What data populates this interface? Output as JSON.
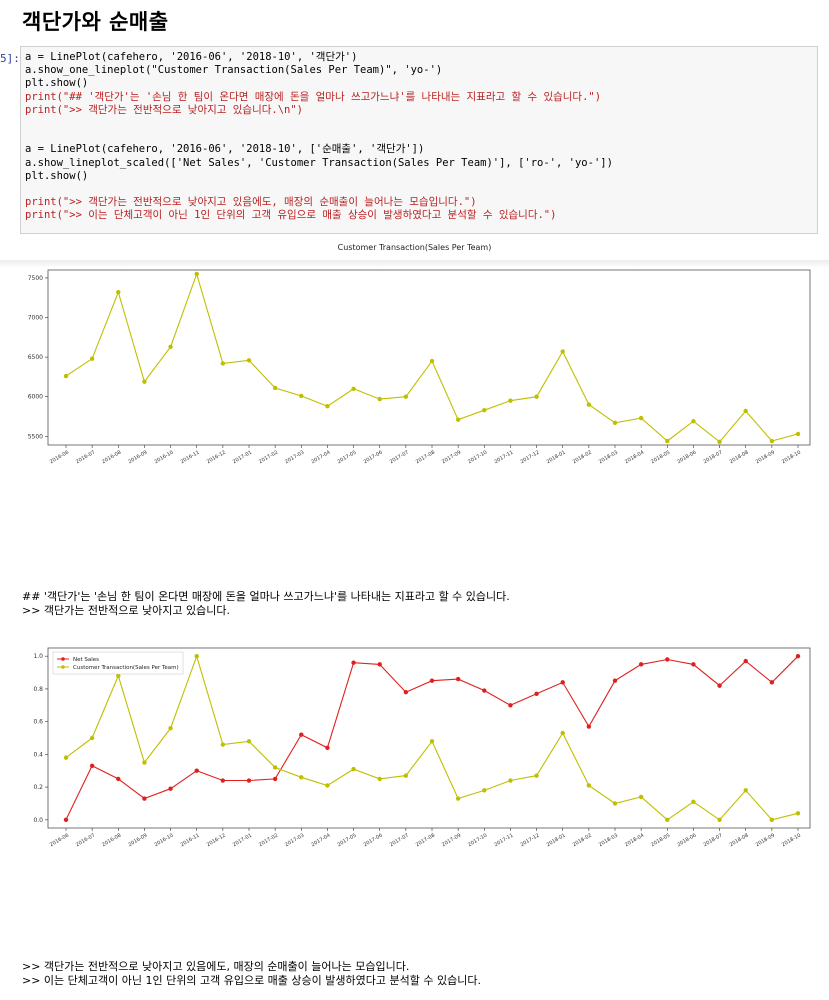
{
  "heading": "객단가와 순매출",
  "prompt": "5]:",
  "code_lines": [
    {
      "text": "a = LinePlot(cafehero, '2016-06', '2018-10', '객단가')",
      "style": "plain"
    },
    {
      "text": "a.show_one_lineplot(\"Customer Transaction(Sales Per Team)\", 'yo-')",
      "style": "plain"
    },
    {
      "text": "plt.show()",
      "style": "plain"
    },
    {
      "text": "print(\"## '객단가'는 '손님 한 팀이 온다면 매장에 돈을 얼마나 쓰고가느냐'를 나타내는 지표라고 할 수 있습니다.\")",
      "style": "red"
    },
    {
      "text": "print(\">> 객단가는 전반적으로 낮아지고 있습니다.\\n\")",
      "style": "red"
    },
    {
      "text": "",
      "style": "plain"
    },
    {
      "text": "",
      "style": "plain"
    },
    {
      "text": "a = LinePlot(cafehero, '2016-06', '2018-10', ['순매출', '객단가'])",
      "style": "plain"
    },
    {
      "text": "a.show_lineplot_scaled(['Net Sales', 'Customer Transaction(Sales Per Team)'], ['ro-', 'yo-'])",
      "style": "plain"
    },
    {
      "text": "plt.show()",
      "style": "plain"
    },
    {
      "text": "",
      "style": "plain"
    },
    {
      "text": "print(\">> 객단가는 전반적으로 낮아지고 있음에도, 매장의 순매출이 늘어나는 모습입니다.\")",
      "style": "red"
    },
    {
      "text": "print(\">> 이는 단체고객이 아닌 1인 단위의 고객 유입으로 매출 상승이 발생하였다고 분석할 수 있습니다.\")",
      "style": "red"
    }
  ],
  "output1": {
    "line1": "## '객단가'는 '손님 한 팀이 온다면 매장에 돈을 얼마나 쓰고가느냐'를 나타내는 지표라고 할 수 있습니다.",
    "line2": ">> 객단가는 전반적으로 낮아지고 있습니다."
  },
  "output2": {
    "line1": ">> 객단가는 전반적으로 낮아지고 있음에도, 매장의 순매출이 늘어나는 모습입니다.",
    "line2": ">> 이는 단체고객이 아닌 1인 단위의 고객 유입으로 매출 상승이 발생하였다고 분석할 수 있습니다."
  },
  "chart_data": [
    {
      "type": "line",
      "title": "Customer Transaction(Sales Per Team)",
      "xlabel": "",
      "ylabel": "",
      "categories": [
        "2016-06",
        "2016-07",
        "2016-08",
        "2016-09",
        "2016-10",
        "2016-11",
        "2016-12",
        "2017-01",
        "2017-02",
        "2017-03",
        "2017-04",
        "2017-05",
        "2017-06",
        "2017-07",
        "2017-08",
        "2017-09",
        "2017-10",
        "2017-11",
        "2017-12",
        "2018-01",
        "2018-02",
        "2018-03",
        "2018-04",
        "2018-05",
        "2018-06",
        "2018-07",
        "2018-08",
        "2018-09",
        "2018-10"
      ],
      "series": [
        {
          "values": [
            6260,
            6480,
            7320,
            6190,
            6630,
            7550,
            6420,
            6460,
            6110,
            6010,
            5880,
            6100,
            5970,
            6000,
            6450,
            5710,
            5830,
            5950,
            6000,
            6570,
            5900,
            5670,
            5730,
            5440,
            5690,
            5430,
            5820,
            5440,
            5530
          ],
          "color": "#bfbf00"
        }
      ],
      "yticks": [
        5500,
        6000,
        6500,
        7000,
        7500
      ],
      "ylim": [
        5390,
        7600
      ],
      "grid": false,
      "legend": "none"
    },
    {
      "type": "line",
      "title": "",
      "xlabel": "",
      "ylabel": "",
      "categories": [
        "2016-06",
        "2016-07",
        "2016-08",
        "2016-09",
        "2016-10",
        "2016-11",
        "2016-12",
        "2017-01",
        "2017-02",
        "2017-03",
        "2017-04",
        "2017-05",
        "2017-06",
        "2017-07",
        "2017-08",
        "2017-09",
        "2017-10",
        "2017-11",
        "2017-12",
        "2018-01",
        "2018-02",
        "2018-03",
        "2018-04",
        "2018-05",
        "2018-06",
        "2018-07",
        "2018-08",
        "2018-09",
        "2018-10"
      ],
      "series": [
        {
          "name": "Net Sales",
          "color": "#e02020",
          "values": [
            0.0,
            0.33,
            0.25,
            0.13,
            0.19,
            0.3,
            0.24,
            0.24,
            0.25,
            0.52,
            0.44,
            0.96,
            0.95,
            0.78,
            0.85,
            0.86,
            0.79,
            0.7,
            0.77,
            0.84,
            0.57,
            0.85,
            0.95,
            0.98,
            0.95,
            0.82,
            0.97,
            0.84,
            1.0
          ]
        },
        {
          "name": "Customer Transaction(Sales Per Team)",
          "color": "#bfbf00",
          "values": [
            0.38,
            0.5,
            0.88,
            0.35,
            0.56,
            1.0,
            0.46,
            0.48,
            0.32,
            0.26,
            0.21,
            0.31,
            0.25,
            0.27,
            0.48,
            0.13,
            0.18,
            0.24,
            0.27,
            0.53,
            0.21,
            0.1,
            0.14,
            0.0,
            0.11,
            0.0,
            0.18,
            0.0,
            0.04
          ]
        }
      ],
      "yticks": [
        0.0,
        0.2,
        0.4,
        0.6,
        0.8,
        1.0
      ],
      "ytick_labels": [
        "0.0",
        "0.2",
        "0.4",
        "0.6",
        "0.8",
        "1.0"
      ],
      "ylim": [
        -0.05,
        1.05
      ],
      "grid": false,
      "legend": "top-left"
    }
  ]
}
